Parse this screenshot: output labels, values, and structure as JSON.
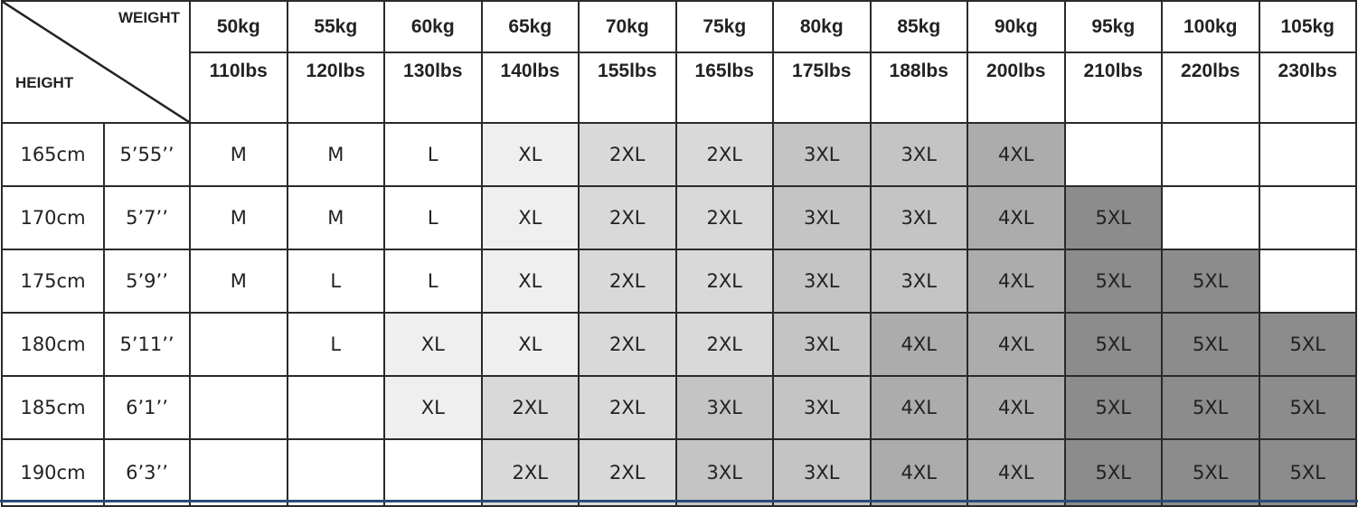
{
  "corner": {
    "weight_label": "WEIGHT",
    "height_label": "HEIGHT"
  },
  "weights_kg": [
    "50kg",
    "55kg",
    "60kg",
    "65kg",
    "70kg",
    "75kg",
    "80kg",
    "85kg",
    "90kg",
    "95kg",
    "100kg",
    "105kg"
  ],
  "weights_lbs": [
    "110lbs",
    "120lbs",
    "130lbs",
    "140lbs",
    "155lbs",
    "165lbs",
    "175lbs",
    "188lbs",
    "200lbs",
    "210lbs",
    "220lbs",
    "230lbs"
  ],
  "rows": [
    {
      "cm": "165cm",
      "ft": "5’55’’",
      "sizes": [
        "M",
        "M",
        "L",
        "XL",
        "2XL",
        "2XL",
        "3XL",
        "3XL",
        "4XL",
        "",
        "",
        ""
      ]
    },
    {
      "cm": "170cm",
      "ft": "5’7’’",
      "sizes": [
        "M",
        "M",
        "L",
        "XL",
        "2XL",
        "2XL",
        "3XL",
        "3XL",
        "4XL",
        "5XL",
        "",
        ""
      ]
    },
    {
      "cm": "175cm",
      "ft": "5’9’’",
      "sizes": [
        "M",
        "L",
        "L",
        "XL",
        "2XL",
        "2XL",
        "3XL",
        "3XL",
        "4XL",
        "5XL",
        "5XL",
        ""
      ]
    },
    {
      "cm": "180cm",
      "ft": "5’11’’",
      "sizes": [
        "",
        "L",
        "XL",
        "XL",
        "2XL",
        "2XL",
        "3XL",
        "4XL",
        "4XL",
        "5XL",
        "5XL",
        "5XL"
      ]
    },
    {
      "cm": "185cm",
      "ft": "6’1’’",
      "sizes": [
        "",
        "",
        "XL",
        "2XL",
        "2XL",
        "3XL",
        "3XL",
        "4XL",
        "4XL",
        "5XL",
        "5XL",
        "5XL"
      ]
    },
    {
      "cm": "190cm",
      "ft": "6’3’’",
      "sizes": [
        "",
        "",
        "",
        "2XL",
        "2XL",
        "3XL",
        "3XL",
        "4XL",
        "4XL",
        "5XL",
        "5XL",
        "5XL"
      ]
    }
  ],
  "size_colors": {
    "M": "#ffffff",
    "L": "#ffffff",
    "XL": "#efefef",
    "2XL": "#d9d9d9",
    "3XL": "#c4c4c4",
    "4XL": "#acacac",
    "5XL": "#8c8c8c",
    "": "#ffffff"
  }
}
